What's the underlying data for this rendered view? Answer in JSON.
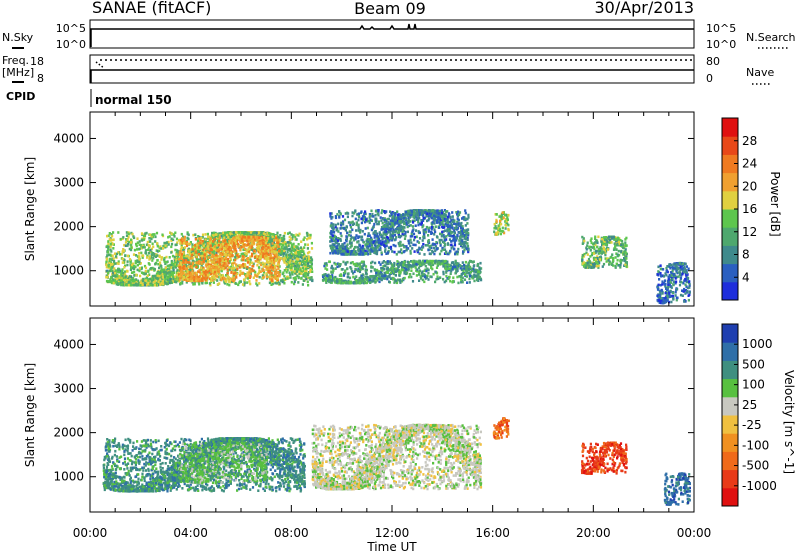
{
  "header": {
    "station": "SANAE (fitACF)",
    "beam": "Beam 09",
    "date": "30/Apr/2013"
  },
  "panels": {
    "nsky": {
      "left_label": "N.Sky",
      "left_ticks": [
        "10^5",
        "10^0"
      ],
      "right_ticks": [
        "10^5",
        "10^0"
      ],
      "right_label": "N.Search"
    },
    "freq": {
      "left_label_1": "Freq.",
      "left_label_2": "[MHz]",
      "left_ticks": [
        "18",
        "8"
      ],
      "right_ticks": [
        "80",
        "0"
      ],
      "right_label": "Nave"
    },
    "cpid": {
      "label": "CPID",
      "value": "normal 150"
    }
  },
  "x_axis": {
    "label": "Time UT",
    "ticks": [
      "00:00",
      "04:00",
      "08:00",
      "12:00",
      "16:00",
      "20:00",
      "00:00"
    ]
  },
  "colors": {
    "power_scale": [
      "#1e2edc",
      "#2a5fc0",
      "#3f8a8c",
      "#4ea86e",
      "#5ec64e",
      "#e0d040",
      "#f0a030",
      "#ef7a20",
      "#e84818",
      "#e01010"
    ],
    "velocity_scale": [
      "#1f3fb0",
      "#2f6fa8",
      "#3f8f80",
      "#58c040",
      "#c8c8c0",
      "#f0c040",
      "#f09020",
      "#ef6a1a",
      "#e83a18",
      "#e01010"
    ]
  },
  "chart_data": [
    {
      "type": "heatmap",
      "title": "Power",
      "ylabel": "Slant Range [km]",
      "xlabel": "",
      "x_unit": "hours UT",
      "xlim": [
        0,
        24
      ],
      "ylim": [
        200,
        4600
      ],
      "yticks": [
        1000,
        2000,
        3000,
        4000
      ],
      "colorbar": {
        "label": "Power [dB]",
        "range": [
          0,
          30
        ],
        "ticks": [
          "4",
          "8",
          "12",
          "16",
          "20",
          "24",
          "28"
        ]
      },
      "regions": [
        {
          "t0": 0.6,
          "t1": 8.8,
          "r0": 700,
          "r1": 1900,
          "level": 13
        },
        {
          "t0": 3.5,
          "t1": 7.5,
          "r0": 800,
          "r1": 1800,
          "level": 20
        },
        {
          "t0": 9.2,
          "t1": 15.5,
          "r0": 750,
          "r1": 1250,
          "level": 9
        },
        {
          "t0": 9.5,
          "t1": 15.0,
          "r0": 1400,
          "r1": 2400,
          "level": 6
        },
        {
          "t0": 16.0,
          "t1": 16.6,
          "r0": 1850,
          "r1": 2350,
          "level": 15
        },
        {
          "t0": 19.5,
          "t1": 21.3,
          "r0": 1100,
          "r1": 1800,
          "level": 12
        },
        {
          "t0": 22.5,
          "t1": 23.8,
          "r0": 300,
          "r1": 1200,
          "level": 5
        }
      ]
    },
    {
      "type": "heatmap",
      "title": "Velocity",
      "ylabel": "Slant Range [km]",
      "xlabel": "Time UT",
      "x_unit": "hours UT",
      "xlim": [
        0,
        24
      ],
      "ylim": [
        200,
        4600
      ],
      "yticks": [
        1000,
        2000,
        3000,
        4000
      ],
      "colorbar": {
        "label": "Velocity [m s^-1]",
        "ticks": [
          "1000",
          "500",
          "100",
          "25",
          "-25",
          "-100",
          "-500",
          "-1000"
        ]
      },
      "regions": [
        {
          "t0": 0.5,
          "t1": 8.5,
          "r0": 700,
          "r1": 1900,
          "velocity": 150
        },
        {
          "t0": 3.5,
          "t1": 7.0,
          "r0": 900,
          "r1": 1800,
          "velocity": 80
        },
        {
          "t0": 8.8,
          "t1": 15.5,
          "r0": 750,
          "r1": 2200,
          "velocity": 0
        },
        {
          "t0": 16.0,
          "t1": 16.6,
          "r0": 1900,
          "r1": 2350,
          "velocity": -500
        },
        {
          "t0": 19.5,
          "t1": 21.3,
          "r0": 1100,
          "r1": 1800,
          "velocity": -600
        },
        {
          "t0": 22.8,
          "t1": 23.8,
          "r0": 400,
          "r1": 1100,
          "velocity": 400
        }
      ]
    }
  ]
}
